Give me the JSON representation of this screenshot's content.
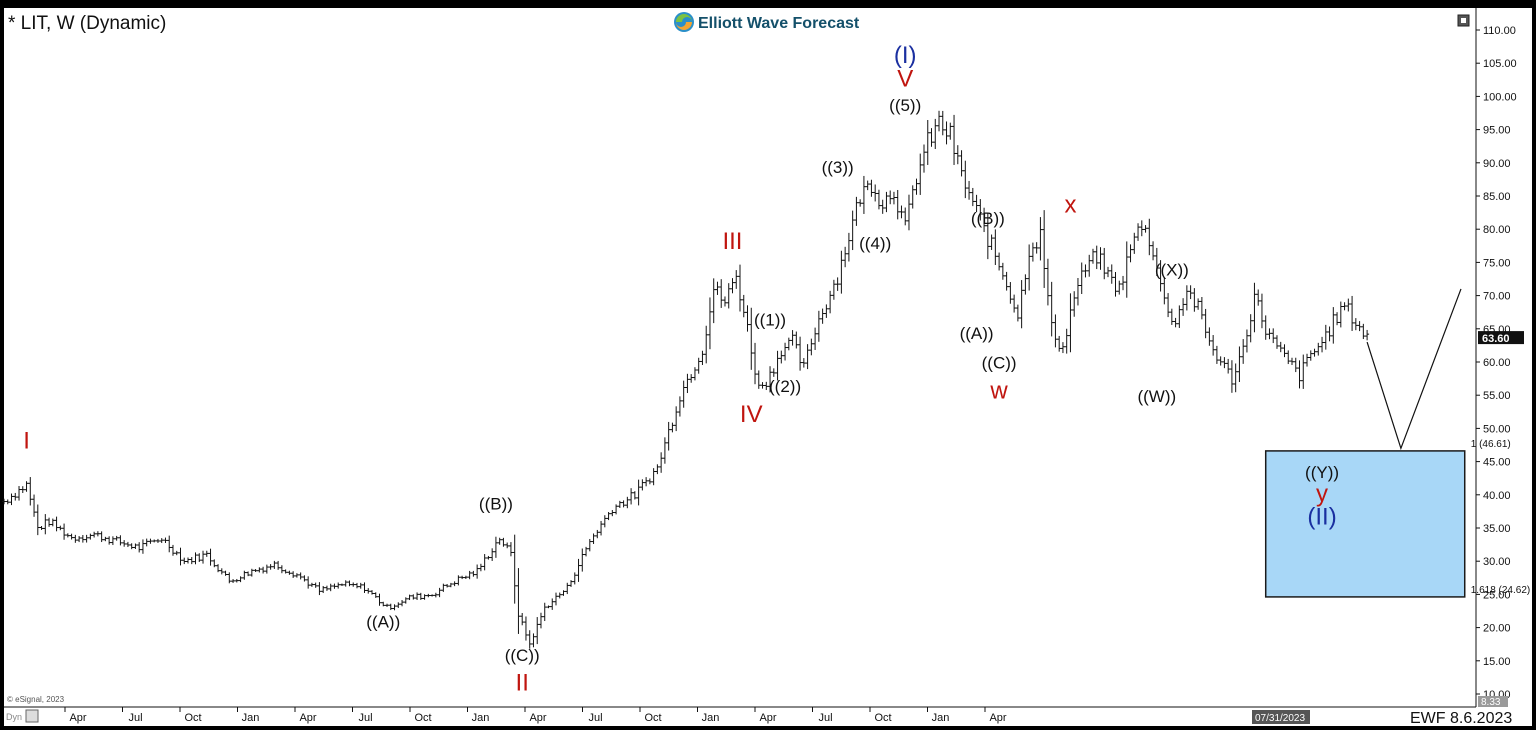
{
  "header": {
    "symbol_title": "* LIT, W (Dynamic)",
    "brand": "Elliott Wave Forecast",
    "footer_tag": "EWF 8.6.2023",
    "copyright": "© eSignal, 2023",
    "dyn_label": "Dyn",
    "cursor_date": "07/31/2023"
  },
  "colors": {
    "bar": "#111111",
    "red_label": "#c0150f",
    "blue_label": "#1a2fa0",
    "black_label": "#111111",
    "target_fill": "#a8d7f7",
    "target_stroke": "#1b1b1b",
    "price_badge": "#111111"
  },
  "chart_data": {
    "type": "line",
    "title": "* LIT, W (Dynamic)",
    "xlabel": "",
    "ylabel": "",
    "ylim": [
      10,
      110
    ],
    "yticks": [
      "110.00",
      "105.00",
      "100.00",
      "95.00",
      "90.00",
      "85.00",
      "80.00",
      "75.00",
      "70.00",
      "65.00",
      "60.00",
      "55.00",
      "50.00",
      "45.00",
      "40.00",
      "35.00",
      "30.00",
      "25.00",
      "20.00",
      "15.00",
      "10.00"
    ],
    "xticks": [
      "Apr",
      "Jul",
      "Oct",
      "Jan",
      "Apr",
      "Jul",
      "Oct",
      "Jan",
      "Apr",
      "Jul",
      "Oct",
      "Jan",
      "Apr",
      "Jul",
      "Oct",
      "Jan",
      "Apr"
    ],
    "last_price": "63.60",
    "bottom_value": "8.33",
    "series": [
      {
        "name": "",
        "anchors": [
          [
            0,
            39
          ],
          [
            6,
            41.5
          ],
          [
            9,
            35
          ],
          [
            12,
            36
          ],
          [
            18,
            33.5
          ],
          [
            24,
            34
          ],
          [
            36,
            32
          ],
          [
            42,
            33.5
          ],
          [
            48,
            30
          ],
          [
            54,
            31
          ],
          [
            60,
            27
          ],
          [
            66,
            28.5
          ],
          [
            72,
            29.5
          ],
          [
            78,
            28
          ],
          [
            84,
            25.5
          ],
          [
            90,
            26.5
          ],
          [
            96,
            26
          ],
          [
            102,
            23
          ],
          [
            108,
            24.5
          ],
          [
            114,
            25
          ],
          [
            120,
            27
          ],
          [
            126,
            28.5
          ],
          [
            132,
            33.5
          ],
          [
            135,
            31
          ],
          [
            137,
            22
          ],
          [
            140,
            17.5
          ],
          [
            144,
            23
          ],
          [
            150,
            26
          ],
          [
            156,
            33
          ],
          [
            162,
            38
          ],
          [
            168,
            40
          ],
          [
            174,
            44
          ],
          [
            180,
            55
          ],
          [
            186,
            62
          ],
          [
            189,
            71
          ],
          [
            192,
            69
          ],
          [
            195,
            73
          ],
          [
            198,
            65
          ],
          [
            201,
            56
          ],
          [
            204,
            58
          ],
          [
            207,
            62
          ],
          [
            210,
            63
          ],
          [
            213,
            59
          ],
          [
            216,
            65
          ],
          [
            222,
            73
          ],
          [
            228,
            85
          ],
          [
            231,
            87
          ],
          [
            234,
            84
          ],
          [
            237,
            86
          ],
          [
            240,
            80
          ],
          [
            243,
            88
          ],
          [
            246,
            93
          ],
          [
            249,
            96
          ],
          [
            252,
            94
          ],
          [
            255,
            88
          ],
          [
            258,
            84
          ],
          [
            261,
            80
          ],
          [
            264,
            76
          ],
          [
            267,
            72
          ],
          [
            270,
            67
          ],
          [
            273,
            77
          ],
          [
            276,
            79
          ],
          [
            279,
            65
          ],
          [
            282,
            62
          ],
          [
            285,
            70
          ],
          [
            288,
            74
          ],
          [
            291,
            76
          ],
          [
            294,
            73
          ],
          [
            297,
            71
          ],
          [
            300,
            77
          ],
          [
            303,
            81
          ],
          [
            306,
            77
          ],
          [
            309,
            69
          ],
          [
            312,
            66
          ],
          [
            315,
            71
          ],
          [
            318,
            68
          ],
          [
            321,
            63
          ],
          [
            324,
            60
          ],
          [
            327,
            57.5
          ],
          [
            330,
            62
          ],
          [
            333,
            70
          ],
          [
            336,
            65
          ],
          [
            339,
            62
          ],
          [
            342,
            60
          ],
          [
            345,
            58
          ],
          [
            348,
            61
          ],
          [
            351,
            63
          ],
          [
            354,
            66
          ],
          [
            357,
            68.5
          ],
          [
            360,
            66
          ],
          [
            363,
            63.6
          ]
        ]
      }
    ],
    "projection": [
      [
        363,
        63
      ],
      [
        372,
        47
      ],
      [
        388,
        71
      ]
    ],
    "target_box": {
      "x_start": 336,
      "x_end": 389,
      "y_top": 46.61,
      "y_bottom": 24.62,
      "top_label": "1 (46.61)",
      "bottom_label": "1.618 (24.62)"
    },
    "wave_labels": [
      {
        "text": "I",
        "x": 6,
        "y": 47,
        "color": "red",
        "size": "l"
      },
      {
        "text": "((A))",
        "x": 101,
        "y": 20,
        "color": "black",
        "size": "m"
      },
      {
        "text": "((B))",
        "x": 131,
        "y": 37.8,
        "color": "black",
        "size": "m"
      },
      {
        "text": "((C))",
        "x": 138,
        "y": 15,
        "color": "black",
        "size": "m"
      },
      {
        "text": "II",
        "x": 138,
        "y": 10.5,
        "color": "red",
        "size": "l"
      },
      {
        "text": "III",
        "x": 194,
        "y": 77,
        "color": "red",
        "size": "l"
      },
      {
        "text": "((1))",
        "x": 204,
        "y": 65.5,
        "color": "black",
        "size": "m"
      },
      {
        "text": "((2))",
        "x": 208,
        "y": 55.5,
        "color": "black",
        "size": "m"
      },
      {
        "text": "IV",
        "x": 199,
        "y": 51,
        "color": "red",
        "size": "l"
      },
      {
        "text": "((3))",
        "x": 222,
        "y": 88.5,
        "color": "black",
        "size": "m"
      },
      {
        "text": "((4))",
        "x": 232,
        "y": 77,
        "color": "black",
        "size": "m"
      },
      {
        "text": "((5))",
        "x": 240,
        "y": 97.8,
        "color": "black",
        "size": "m"
      },
      {
        "text": "V",
        "x": 240,
        "y": 101.5,
        "color": "red",
        "size": "l"
      },
      {
        "text": "(I)",
        "x": 240,
        "y": 105,
        "color": "blue",
        "size": "l"
      },
      {
        "text": "((B))",
        "x": 262,
        "y": 80.8,
        "color": "black",
        "size": "m"
      },
      {
        "text": "((A))",
        "x": 259,
        "y": 63.5,
        "color": "black",
        "size": "m"
      },
      {
        "text": "((C))",
        "x": 265,
        "y": 59,
        "color": "black",
        "size": "m"
      },
      {
        "text": "w",
        "x": 265,
        "y": 54.5,
        "color": "red",
        "size": "l"
      },
      {
        "text": "x",
        "x": 284,
        "y": 82.5,
        "color": "red",
        "size": "l"
      },
      {
        "text": "((X))",
        "x": 311,
        "y": 73,
        "color": "black",
        "size": "m"
      },
      {
        "text": "((W))",
        "x": 307,
        "y": 54,
        "color": "black",
        "size": "m"
      },
      {
        "text": "((Y))",
        "x": 351,
        "y": 42.5,
        "color": "black",
        "size": "m"
      },
      {
        "text": "y",
        "x": 351,
        "y": 39,
        "color": "red",
        "size": "l"
      },
      {
        "text": "(II)",
        "x": 351,
        "y": 35.5,
        "color": "blue",
        "size": "l"
      }
    ]
  }
}
